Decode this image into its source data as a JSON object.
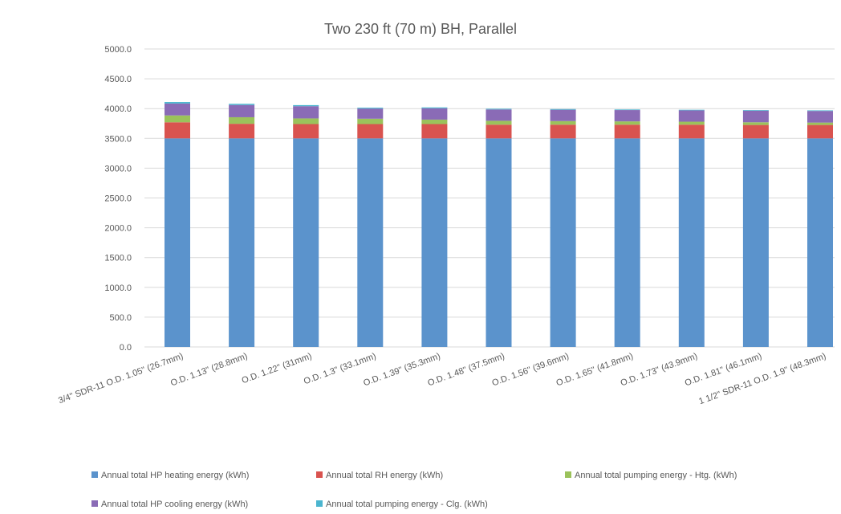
{
  "chart_data": {
    "type": "bar",
    "stacked": true,
    "title": "Two 230 ft (70 m) BH, Parallel",
    "xlabel": "",
    "ylabel": "",
    "ylim": [
      0,
      5000
    ],
    "yticks": [
      "0.0",
      "500.0",
      "1000.0",
      "1500.0",
      "2000.0",
      "2500.0",
      "3000.0",
      "3500.0",
      "4000.0",
      "4500.0",
      "5000.0"
    ],
    "grid": true,
    "legend_position": "bottom",
    "categories": [
      "3/4\" SDR-11 O.D. 1.05\" (26.7mm)",
      "O.D. 1.13\" (28.8mm)",
      "O.D. 1.22\" (31mm)",
      "O.D. 1.3\" (33.1mm)",
      "O.D. 1.39\" (35.3mm)",
      "O.D. 1.48\" (37.5mm)",
      "O.D. 1.56\" (39.6mm)",
      "O.D. 1.65\" (41.8mm)",
      "O.D. 1.73\" (43.9mm)",
      "O.D. 1.81\" (46.1mm)",
      "1 1/2\" SDR-11 O.D. 1.9\" (48.3mm)"
    ],
    "series": [
      {
        "name": "Annual total HP heating energy (kWh)",
        "color": "#5b93cc",
        "values": [
          3500,
          3500,
          3500,
          3500,
          3500,
          3500,
          3500,
          3500,
          3500,
          3500,
          3500
        ]
      },
      {
        "name": "Annual total RH energy (kWh)",
        "color": "#d9534f",
        "values": [
          270,
          245,
          240,
          240,
          240,
          230,
          230,
          230,
          230,
          225,
          225
        ]
      },
      {
        "name": "Annual total pumping energy - Htg. (kWh)",
        "color": "#9bc25b",
        "values": [
          115,
          110,
          95,
          90,
          75,
          65,
          60,
          55,
          50,
          45,
          40
        ]
      },
      {
        "name": "Annual total HP cooling energy (kWh)",
        "color": "#8a6bb6",
        "values": [
          200,
          205,
          205,
          170,
          190,
          190,
          190,
          190,
          190,
          195,
          195
        ]
      },
      {
        "name": "Annual total pumping energy - Clg. (kWh)",
        "color": "#4bb5cf",
        "values": [
          25,
          20,
          18,
          15,
          15,
          12,
          12,
          10,
          10,
          10,
          10
        ]
      }
    ]
  }
}
